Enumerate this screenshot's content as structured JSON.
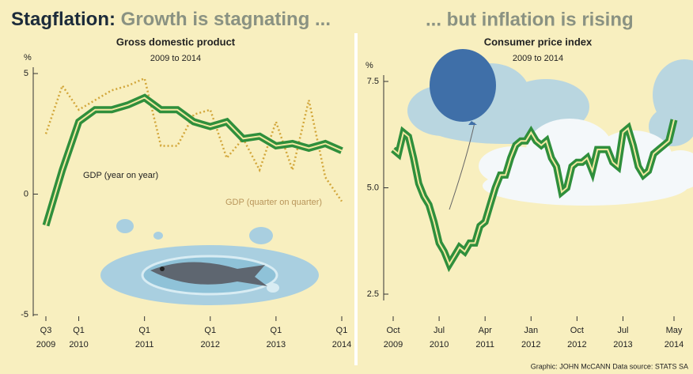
{
  "headline": {
    "lead": "Stagflation:",
    "left": "Growth is stagnating ...",
    "right": "... but inflation is rising"
  },
  "credit": "Graphic: JOHN McCANN  Data source: STATS SA",
  "chart_data": [
    {
      "type": "line",
      "title": "Gross domestic product",
      "subtitle": "2009 to 2014",
      "ylabel": "%",
      "categories": [
        "Q3 2009",
        null,
        "Q1 2010",
        null,
        null,
        null,
        "Q1 2011",
        null,
        null,
        null,
        "Q1 2012",
        null,
        null,
        null,
        "Q1 2013",
        null,
        null,
        null,
        "Q1 2014"
      ],
      "series": [
        {
          "name": "GDP (year on year)",
          "color": "#2f8f3c",
          "style": "solid",
          "values": [
            -1.3,
            1.0,
            3.0,
            3.5,
            3.5,
            3.7,
            4.0,
            3.5,
            3.5,
            3.0,
            2.8,
            3.0,
            2.3,
            2.4,
            2.0,
            2.1,
            1.9,
            2.1,
            1.8
          ]
        },
        {
          "name": "GDP (quarter on quarter)",
          "color": "#d2a63a",
          "style": "dotted",
          "values": [
            2.5,
            4.5,
            3.5,
            3.9,
            4.3,
            4.5,
            4.8,
            2.0,
            2.0,
            3.3,
            3.5,
            1.5,
            2.3,
            1.0,
            3.0,
            1.0,
            3.9,
            0.7,
            -0.3
          ]
        }
      ],
      "ylim": [
        -5,
        5
      ],
      "yticks": [
        -5,
        0,
        5
      ]
    },
    {
      "type": "line",
      "title": "Consumer price index",
      "subtitle": "2009 to 2014",
      "ylabel": "%",
      "categories": [
        "Oct 2009",
        null,
        null,
        null,
        null,
        null,
        null,
        null,
        null,
        "Jul 2010",
        null,
        null,
        null,
        null,
        null,
        null,
        null,
        null,
        "Apr 2011",
        null,
        null,
        null,
        null,
        null,
        null,
        null,
        null,
        "Jan 2012",
        null,
        null,
        null,
        null,
        null,
        null,
        null,
        null,
        "Oct 2012",
        null,
        null,
        null,
        null,
        null,
        null,
        null,
        null,
        "Jul 2013",
        null,
        null,
        null,
        null,
        null,
        null,
        null,
        null,
        null,
        "May 2014"
      ],
      "series": [
        {
          "name": "CPI",
          "color": "#2f8f3c",
          "style": "solid",
          "values": [
            5.9,
            5.8,
            6.3,
            6.2,
            5.7,
            5.1,
            4.8,
            4.6,
            4.2,
            3.7,
            3.5,
            3.2,
            3.4,
            3.6,
            3.5,
            3.7,
            3.7,
            4.1,
            4.2,
            4.6,
            5.0,
            5.3,
            5.3,
            5.7,
            6.0,
            6.1,
            6.1,
            6.3,
            6.1,
            6.0,
            6.1,
            5.7,
            5.5,
            4.9,
            5.0,
            5.5,
            5.6,
            5.6,
            5.7,
            5.4,
            5.9,
            5.9,
            5.9,
            5.6,
            5.5,
            6.3,
            6.4,
            6.0,
            5.5,
            5.3,
            5.4,
            5.8,
            5.9,
            6.0,
            6.1,
            6.6
          ]
        }
      ],
      "ylim": [
        2.5,
        7.5
      ],
      "yticks": [
        7.5,
        {
          "value": 5,
          "label": "5.0"
        },
        2.5
      ]
    }
  ]
}
